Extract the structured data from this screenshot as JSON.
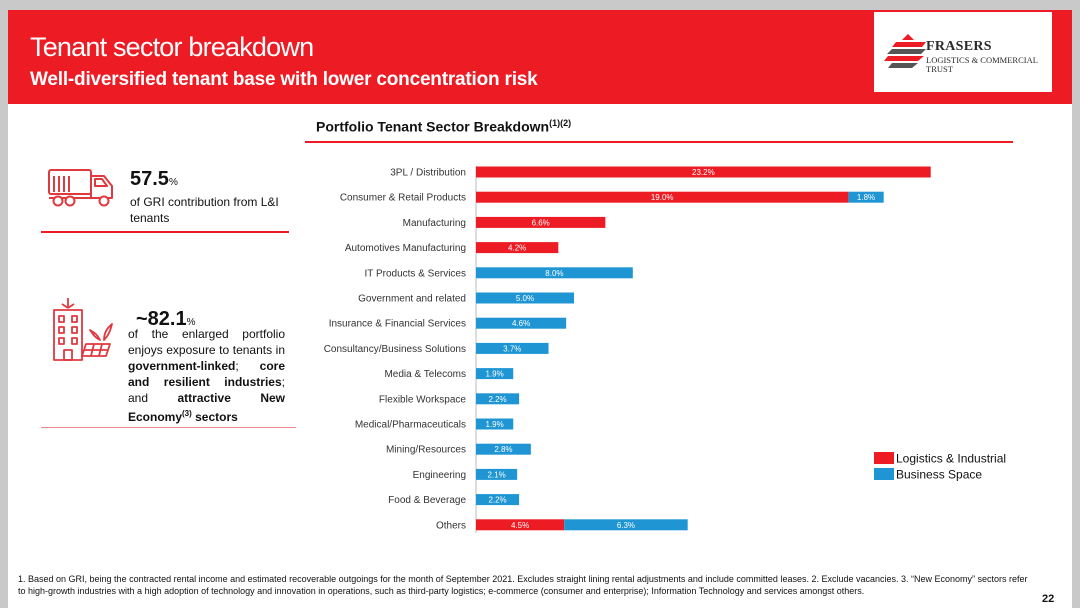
{
  "header": {
    "title": "Tenant sector breakdown",
    "subtitle": "Well-diversified tenant base with lower concentration risk",
    "logo": {
      "name": "FRASERS",
      "line1": "LOGISTICS & COMMERCIAL",
      "line2": "TRUST"
    }
  },
  "chart_title": "Portfolio Tenant Sector Breakdown",
  "chart_title_sup": "(1)(2)",
  "stats": [
    {
      "value": "57.5",
      "unit": "%",
      "icon": "truck-icon",
      "text": "of GRI contribution from L&I tenants"
    },
    {
      "value": "~82.1",
      "unit": "%",
      "icon": "buildings-solar-icon",
      "text_plain": "of the enlarged portfolio enjoys exposure to tenants in ",
      "text_bold1": "government-linked",
      "text_mid": "; ",
      "text_bold2": "core and resilient industries",
      "text_mid2": "; and ",
      "text_bold3": "attractive New Economy",
      "text_sup": "(3)",
      "text_bold4": " sectors"
    }
  ],
  "chart_data": {
    "type": "bar",
    "orientation": "horizontal",
    "stacked": true,
    "title": "Portfolio Tenant Sector Breakdown",
    "categories": [
      "3PL / Distribution",
      "Consumer & Retail Products",
      "Manufacturing",
      "Automotives Manufacturing",
      "IT Products & Services",
      "Government and related",
      "Insurance & Financial Services",
      "Consultancy/Business Solutions",
      "Media & Telecoms",
      "Flexible Workspace",
      "Medical/Pharmaceuticals",
      "Mining/Resources",
      "Engineering",
      "Food & Beverage",
      "Others"
    ],
    "series": [
      {
        "name": "Logistics & Industrial",
        "color": "#ed1c24",
        "values": [
          23.2,
          19.0,
          6.6,
          4.2,
          null,
          null,
          null,
          null,
          null,
          null,
          null,
          null,
          null,
          null,
          4.5
        ]
      },
      {
        "name": "Business Space",
        "color": "#1f96d3",
        "values": [
          null,
          1.8,
          null,
          null,
          8.0,
          5.0,
          4.6,
          3.7,
          1.9,
          2.2,
          1.9,
          2.8,
          2.1,
          2.2,
          6.3
        ]
      }
    ],
    "value_labels": [
      [
        "23.2%",
        "19.0%",
        "6.6%",
        "4.2%",
        null,
        null,
        null,
        null,
        null,
        null,
        null,
        null,
        null,
        null,
        "4.5%"
      ],
      [
        null,
        "1.8%",
        null,
        null,
        "8.0%",
        "5.0%",
        "4.6%",
        "3.7%",
        "1.9%",
        "2.2%",
        "1.9%",
        "2.8%",
        "2.1%",
        "2.2%",
        "6.3%"
      ]
    ],
    "unit": "%",
    "legend_position": "right"
  },
  "footnote": "1. Based on GRI, being the contracted rental income and estimated recoverable outgoings for the month of September 2021. Excludes straight lining rental adjustments and include committed leases.   2. Exclude vacancies. 3. “New Economy” sectors refer to high-growth industries with a high adoption of technology and innovation in operations, such as third-party logistics; e-commerce (consumer and enterprise); Information Technology and services amongst others.",
  "page_number": "22"
}
